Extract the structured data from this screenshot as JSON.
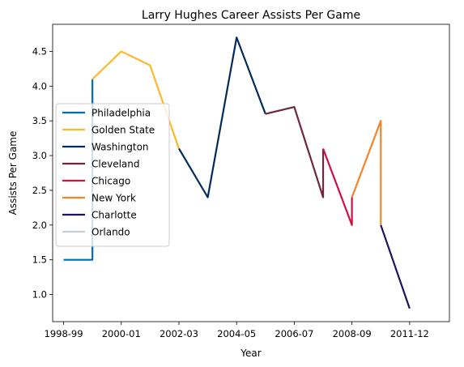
{
  "chart_data": {
    "type": "line",
    "title": "Larry Hughes Career Assists Per Game",
    "xlabel": "Year",
    "ylabel": "Assists Per Game",
    "xlim": [
      -0.38,
      13.38
    ],
    "ylim": [
      0.61,
      4.89
    ],
    "x_ticks": [
      {
        "pos": 0,
        "label": "1998-99"
      },
      {
        "pos": 2,
        "label": "2000-01"
      },
      {
        "pos": 4,
        "label": "2002-03"
      },
      {
        "pos": 6,
        "label": "2004-05"
      },
      {
        "pos": 8,
        "label": "2006-07"
      },
      {
        "pos": 10,
        "label": "2008-09"
      },
      {
        "pos": 12,
        "label": "2011-12"
      }
    ],
    "y_ticks": [
      1.0,
      1.5,
      2.0,
      2.5,
      3.0,
      3.5,
      4.0,
      4.5
    ],
    "y_tick_labels": [
      "1.0",
      "1.5",
      "2.0",
      "2.5",
      "3.0",
      "3.5",
      "4.0",
      "4.5"
    ],
    "grid": false,
    "legend_position": "center-left",
    "series": [
      {
        "name": "Philadelphia",
        "color": "#006bb6",
        "points": [
          [
            0,
            1.5
          ],
          [
            1,
            1.5
          ],
          [
            1,
            4.1
          ]
        ]
      },
      {
        "name": "Golden State",
        "color": "#fdb927",
        "points": [
          [
            1,
            4.1
          ],
          [
            2,
            4.5
          ],
          [
            3,
            4.3
          ],
          [
            4,
            3.1
          ]
        ]
      },
      {
        "name": "Washington",
        "color": "#002b5c",
        "points": [
          [
            4,
            3.1
          ],
          [
            5,
            2.4
          ],
          [
            6,
            4.7
          ],
          [
            7,
            3.6
          ]
        ]
      },
      {
        "name": "Cleveland",
        "color": "#6f263d",
        "points": [
          [
            7,
            3.6
          ],
          [
            8,
            3.7
          ],
          [
            9,
            2.4
          ],
          [
            9,
            3.1
          ]
        ]
      },
      {
        "name": "Chicago",
        "color": "#ce1141",
        "points": [
          [
            9,
            3.1
          ],
          [
            10,
            2.0
          ],
          [
            10,
            2.4
          ]
        ]
      },
      {
        "name": "New York",
        "color": "#f58426",
        "points": [
          [
            10,
            2.4
          ],
          [
            11,
            3.5
          ],
          [
            11,
            2.0
          ]
        ]
      },
      {
        "name": "Charlotte",
        "color": "#1d1160",
        "points": [
          [
            11,
            2.0
          ],
          [
            12,
            0.8
          ]
        ]
      },
      {
        "name": "Orlando",
        "color": "#c4ced4",
        "points": []
      }
    ]
  }
}
